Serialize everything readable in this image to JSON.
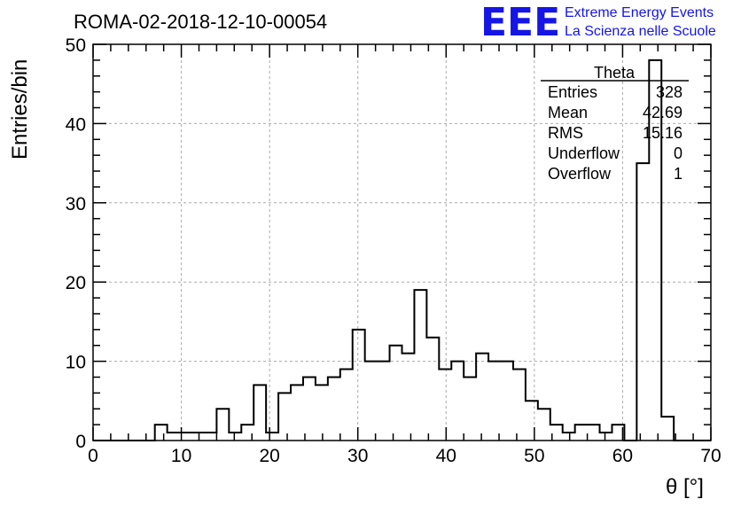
{
  "title": "ROMA-02-2018-12-10-00054",
  "logo": {
    "mark": "EEE",
    "line1": "Extreme Energy Events",
    "line2": "La Scienza nelle Scuole",
    "color": "#1515e6"
  },
  "stats": {
    "name": "Theta",
    "rows": [
      {
        "label": "Entries",
        "value": "328"
      },
      {
        "label": "Mean",
        "value": "42.69"
      },
      {
        "label": "RMS",
        "value": "15.16"
      },
      {
        "label": "Underflow",
        "value": "0"
      },
      {
        "label": "Overflow",
        "value": "1"
      }
    ]
  },
  "chart_data": {
    "type": "histogram",
    "xlabel": "θ [°]",
    "ylabel": "Entries/bin",
    "xlim": [
      0,
      70
    ],
    "ylim": [
      0,
      50
    ],
    "bin_width": 1.4,
    "x_ticks": [
      "0",
      "10",
      "20",
      "30",
      "40",
      "50",
      "60",
      "70"
    ],
    "y_ticks": [
      "0",
      "10",
      "20",
      "30",
      "40",
      "50"
    ],
    "grid": true,
    "counts": [
      0,
      0,
      0,
      0,
      0,
      2,
      1,
      1,
      1,
      1,
      4,
      1,
      2,
      7,
      1,
      6,
      7,
      8,
      7,
      8,
      9,
      14,
      10,
      10,
      12,
      11,
      19,
      13,
      9,
      10,
      8,
      11,
      10,
      10,
      9,
      5,
      4,
      2,
      1,
      2,
      2,
      1,
      2,
      0,
      35,
      48,
      3,
      0,
      0,
      0
    ]
  }
}
